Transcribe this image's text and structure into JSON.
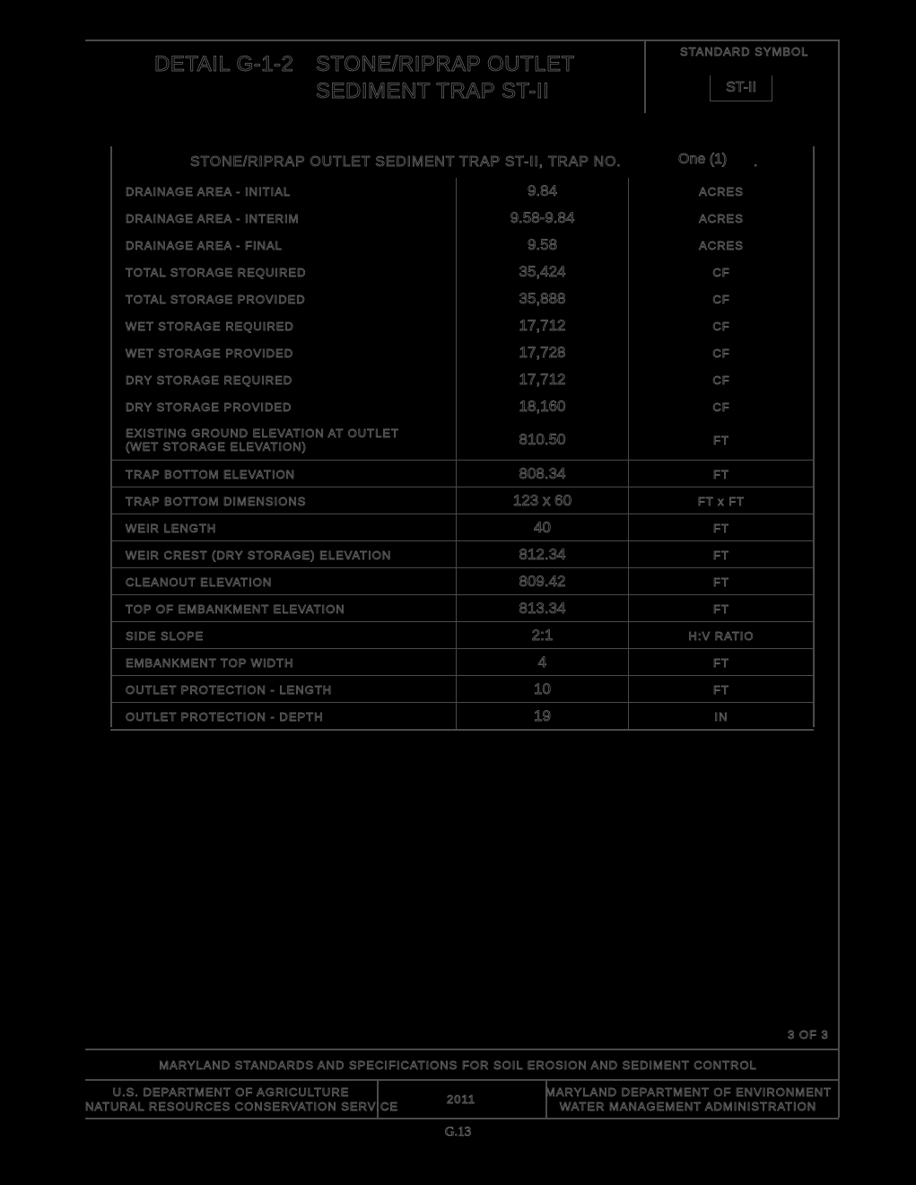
{
  "title_block": {
    "detail_label": "DETAIL G-1-2",
    "title_line1": "STONE/RIPRAP OUTLET",
    "title_line2": "SEDIMENT TRAP ST-II",
    "standard_symbol_label": "STANDARD SYMBOL",
    "standard_symbol": "ST-II"
  },
  "table": {
    "header": "STONE/RIPRAP OUTLET SEDIMENT TRAP ST-II, TRAP NO.",
    "trap_no": "One (1)",
    "rows": [
      {
        "label": "DRAINAGE AREA - INITIAL",
        "value": "9.84",
        "unit": "ACRES"
      },
      {
        "label": "DRAINAGE AREA - INTERIM",
        "value": "9.58-9.84",
        "unit": "ACRES"
      },
      {
        "label": "DRAINAGE AREA - FINAL",
        "value": "9.58",
        "unit": "ACRES"
      },
      {
        "label": "TOTAL STORAGE REQUIRED",
        "value": "35,424",
        "unit": "CF"
      },
      {
        "label": "TOTAL STORAGE PROVIDED",
        "value": "35,888",
        "unit": "CF"
      },
      {
        "label": "WET STORAGE REQUIRED",
        "value": "17,712",
        "unit": "CF"
      },
      {
        "label": "WET STORAGE PROVIDED",
        "value": "17,728",
        "unit": "CF"
      },
      {
        "label": "DRY STORAGE REQUIRED",
        "value": "17,712",
        "unit": "CF"
      },
      {
        "label": "DRY STORAGE PROVIDED",
        "value": "18,160",
        "unit": "CF"
      },
      {
        "label": "EXISTING GROUND ELEVATION AT OUTLET",
        "label2": "(WET STORAGE ELEVATION)",
        "value": "810.50",
        "unit": "FT"
      },
      {
        "label": "TRAP BOTTOM ELEVATION",
        "value": "808.34",
        "unit": "FT"
      },
      {
        "label": "TRAP BOTTOM DIMENSIONS",
        "value": "123 x 60",
        "unit": "FT x FT"
      },
      {
        "label": "WEIR LENGTH",
        "value": "40",
        "unit": "FT"
      },
      {
        "label": "WEIR CREST (DRY STORAGE) ELEVATION",
        "value": "812.34",
        "unit": "FT"
      },
      {
        "label": "CLEANOUT ELEVATION",
        "value": "809.42",
        "unit": "FT"
      },
      {
        "label": "TOP OF EMBANKMENT ELEVATION",
        "value": "813.34",
        "unit": "FT"
      },
      {
        "label": "SIDE SLOPE",
        "value": "2:1",
        "unit": "H:V RATIO"
      },
      {
        "label": "EMBANKMENT TOP WIDTH",
        "value": "4",
        "unit": "FT"
      },
      {
        "label": "OUTLET PROTECTION - LENGTH",
        "value": "10",
        "unit": "FT"
      },
      {
        "label": "OUTLET PROTECTION - DEPTH",
        "value": "19",
        "unit": "IN"
      }
    ]
  },
  "footer": {
    "page_of": "3 OF 3",
    "standards": "MARYLAND STANDARDS AND SPECIFICATIONS FOR SOIL EROSION AND SEDIMENT CONTROL",
    "usda_line1": "U.S. DEPARTMENT OF AGRICULTURE",
    "usda_line2": "NATURAL RESOURCES CONSERVATION SERVICE",
    "year": "2011",
    "mde_line1": "MARYLAND DEPARTMENT OF ENVIRONMENT",
    "mde_line2": "WATER MANAGEMENT ADMINISTRATION",
    "page_number": "G.13"
  }
}
